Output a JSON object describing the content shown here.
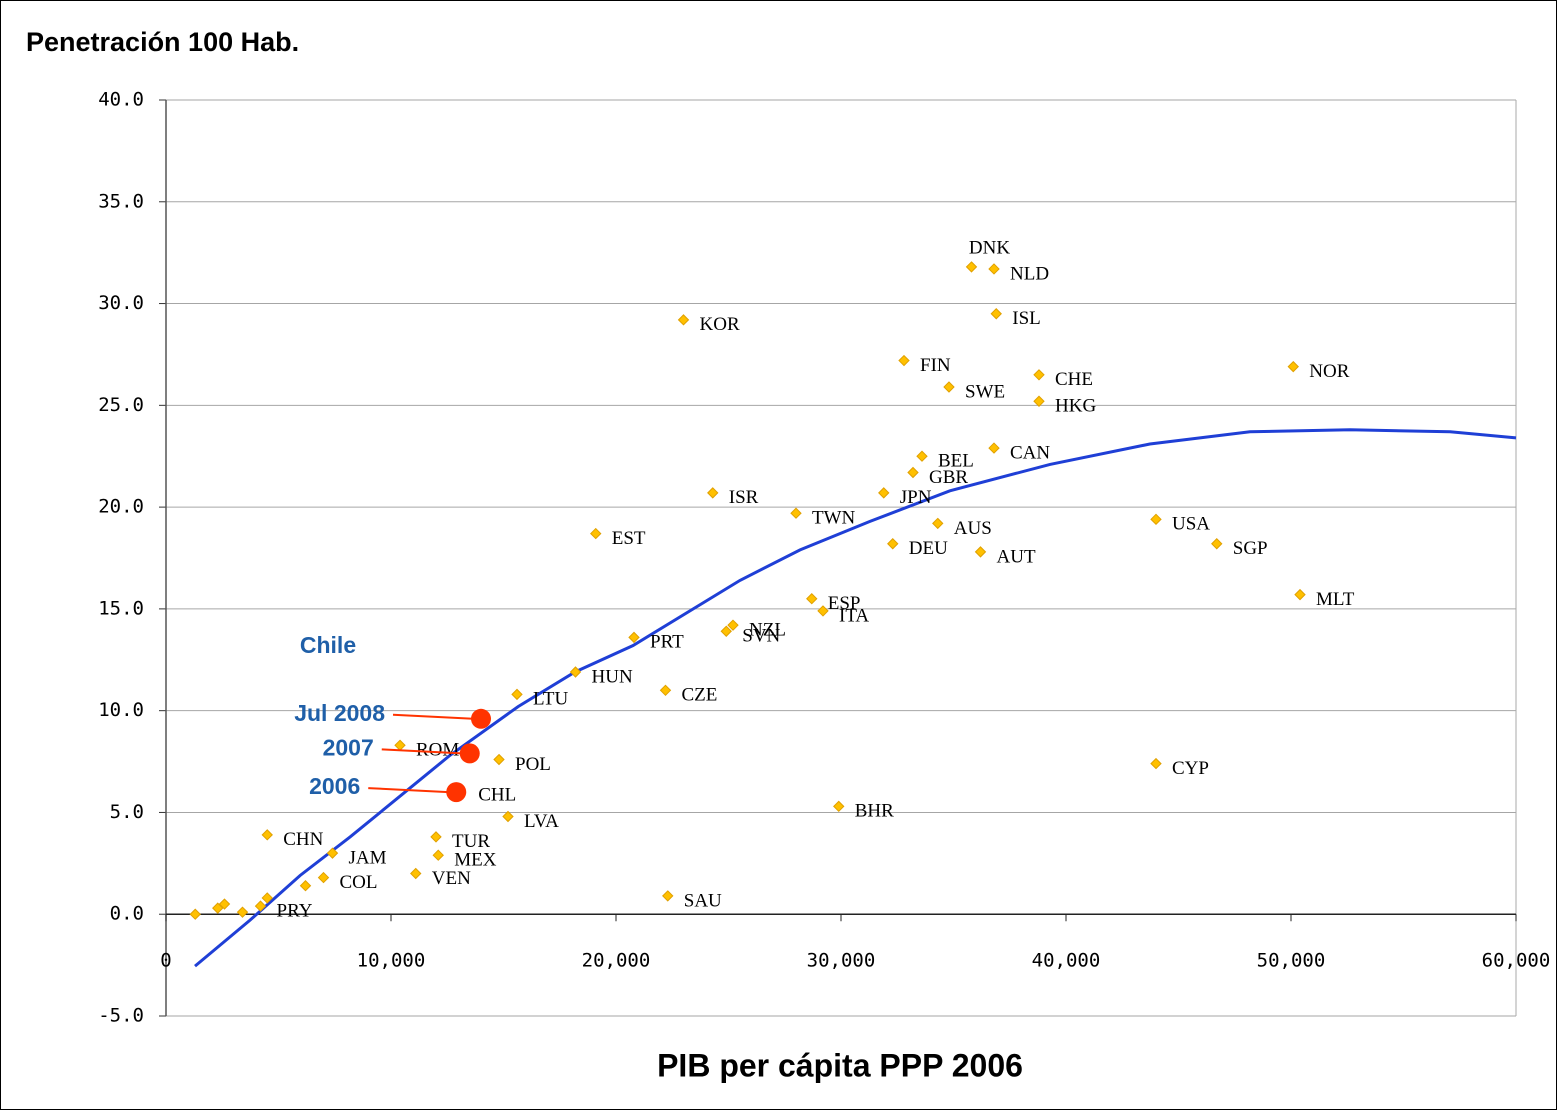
{
  "chart_data": {
    "type": "scatter",
    "title": "Penetración 100 Hab.",
    "x_label": "PIB per cápita PPP 2006",
    "xlim": [
      0,
      60000
    ],
    "ylim": [
      -5,
      40
    ],
    "xticks": [
      0,
      {
        "value": 10000,
        "label": "10,000"
      },
      {
        "value": 20000,
        "label": "20,000"
      },
      {
        "value": 30000,
        "label": "30,000"
      },
      {
        "value": 40000,
        "label": "40,000"
      },
      {
        "value": 50000,
        "label": "50,000"
      },
      {
        "value": 60000,
        "label": "60,000"
      }
    ],
    "yticks": [
      {
        "value": -5,
        "label": "-5.0"
      },
      {
        "value": 0,
        "label": "0.0"
      },
      {
        "value": 5,
        "label": "5.0"
      },
      {
        "value": 10,
        "label": "10.0"
      },
      {
        "value": 15,
        "label": "15.0"
      },
      {
        "value": 20,
        "label": "20.0"
      },
      {
        "value": 25,
        "label": "25.0"
      },
      {
        "value": 30,
        "label": "30.0"
      },
      {
        "value": 35,
        "label": "35.0"
      },
      {
        "value": 40,
        "label": "40.0"
      }
    ],
    "grid": true,
    "series": [
      {
        "color": "#ffc000",
        "labels": [
          "DNK",
          "NLD",
          "ISL",
          "KOR",
          "FIN",
          "NOR",
          "CHE",
          "SWE",
          "HKG",
          "CAN",
          "BEL",
          "GBR",
          "JPN",
          "ISR",
          "TWN",
          "EST",
          "AUS",
          "USA",
          "DEU",
          "SGP",
          "AUT",
          "MLT",
          "ESP",
          "ITA",
          "NZL",
          "SVN",
          "PRT",
          "HUN",
          "CZE",
          "LTU",
          "ROM",
          "POL",
          "CYP",
          "BHR",
          "LVA",
          "CHN",
          "TUR",
          "MEX",
          "JAM",
          "VEN",
          "COL",
          "SAU",
          "PRY",
          null,
          null,
          null,
          null,
          null,
          null
        ],
        "x": [
          35800,
          36800,
          36900,
          23000,
          32800,
          50100,
          38800,
          34800,
          38800,
          36800,
          33600,
          33200,
          31900,
          24300,
          28000,
          19100,
          34300,
          44000,
          32300,
          46700,
          36200,
          50400,
          28700,
          29200,
          25200,
          24900,
          20800,
          18200,
          22200,
          15600,
          10400,
          14800,
          44000,
          29900,
          15200,
          4500,
          12000,
          12100,
          7400,
          11100,
          7000,
          22300,
          4200,
          1300,
          2300,
          2600,
          3400,
          4500,
          6200
        ],
        "values": [
          31.8,
          31.7,
          29.5,
          29.2,
          27.2,
          26.9,
          26.5,
          25.9,
          25.2,
          22.9,
          22.5,
          21.7,
          20.7,
          20.7,
          19.7,
          18.7,
          19.2,
          19.4,
          18.2,
          18.2,
          17.8,
          15.7,
          15.5,
          14.9,
          14.2,
          13.9,
          13.6,
          11.9,
          11.0,
          10.8,
          8.3,
          7.6,
          7.4,
          5.3,
          4.8,
          3.9,
          3.8,
          2.9,
          3.0,
          2.0,
          1.8,
          0.9,
          0.4,
          0.0,
          0.3,
          0.5,
          0.1,
          0.8,
          1.4
        ]
      },
      {
        "name": "Chile",
        "color": "#ff3300",
        "labels": [
          "CHL",
          null,
          null
        ],
        "annotations": [
          "2006",
          "2007",
          "Jul 2008"
        ],
        "x": [
          12900,
          13500,
          14000
        ],
        "values": [
          6.0,
          7.9,
          9.6
        ]
      }
    ],
    "trend": {
      "color": "#1f3fd6",
      "x": [
        1290,
        3730,
        5960,
        8180,
        10400,
        12620,
        15650,
        18180,
        20760,
        25510,
        28180,
        31290,
        34840,
        39290,
        43730,
        48180,
        52620,
        57070,
        60000
      ],
      "values": [
        -2.55,
        -0.3,
        1.9,
        3.8,
        5.8,
        7.8,
        10.2,
        11.9,
        13.2,
        16.4,
        17.9,
        19.3,
        20.8,
        22.1,
        23.1,
        23.7,
        23.8,
        23.7,
        23.4
      ]
    }
  }
}
